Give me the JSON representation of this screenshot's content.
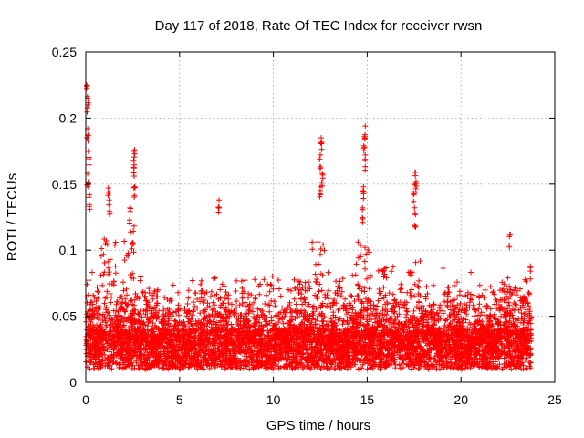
{
  "chart_data": {
    "type": "scatter",
    "title": "Day 117 of 2018, Rate Of TEC Index for receiver rwsn",
    "xlabel": "GPS time / hours",
    "ylabel": "ROTI / TECUs",
    "xlim": [
      0,
      25
    ],
    "ylim": [
      0,
      0.25
    ],
    "x_ticks": [
      0,
      5,
      10,
      15,
      20,
      25
    ],
    "x_tick_labels": [
      "0",
      "5",
      "10",
      "15",
      "20",
      "25"
    ],
    "y_ticks": [
      0,
      0.05,
      0.1,
      0.15,
      0.2,
      0.25
    ],
    "y_tick_labels": [
      "0",
      "0.05",
      "0.1",
      "0.15",
      "0.2",
      "0.25"
    ],
    "grid": true,
    "marker": "+",
    "color": "#ff0000",
    "data_range_hours": [
      0,
      23.75
    ],
    "typical_band": [
      0.01,
      0.05
    ],
    "series": [
      {
        "name": "ROTI",
        "notable_spikes": [
          {
            "x": 0.05,
            "y": 0.225
          },
          {
            "x": 0.1,
            "y": 0.215
          },
          {
            "x": 0.1,
            "y": 0.192
          },
          {
            "x": 0.15,
            "y": 0.175
          },
          {
            "x": 0.1,
            "y": 0.158
          },
          {
            "x": 0.2,
            "y": 0.142
          },
          {
            "x": 1.2,
            "y": 0.147
          },
          {
            "x": 1.25,
            "y": 0.138
          },
          {
            "x": 2.6,
            "y": 0.176
          },
          {
            "x": 2.55,
            "y": 0.168
          },
          {
            "x": 2.6,
            "y": 0.148
          },
          {
            "x": 2.35,
            "y": 0.132
          },
          {
            "x": 7.1,
            "y": 0.138
          },
          {
            "x": 12.55,
            "y": 0.185
          },
          {
            "x": 12.5,
            "y": 0.172
          },
          {
            "x": 12.6,
            "y": 0.158
          },
          {
            "x": 12.5,
            "y": 0.148
          },
          {
            "x": 14.9,
            "y": 0.194
          },
          {
            "x": 14.85,
            "y": 0.186
          },
          {
            "x": 14.9,
            "y": 0.172
          },
          {
            "x": 14.8,
            "y": 0.148
          },
          {
            "x": 14.75,
            "y": 0.132
          },
          {
            "x": 17.55,
            "y": 0.159
          },
          {
            "x": 17.6,
            "y": 0.152
          },
          {
            "x": 17.5,
            "y": 0.143
          },
          {
            "x": 17.55,
            "y": 0.128
          },
          {
            "x": 22.6,
            "y": 0.112
          },
          {
            "x": 23.7,
            "y": 0.088
          }
        ]
      }
    ]
  }
}
